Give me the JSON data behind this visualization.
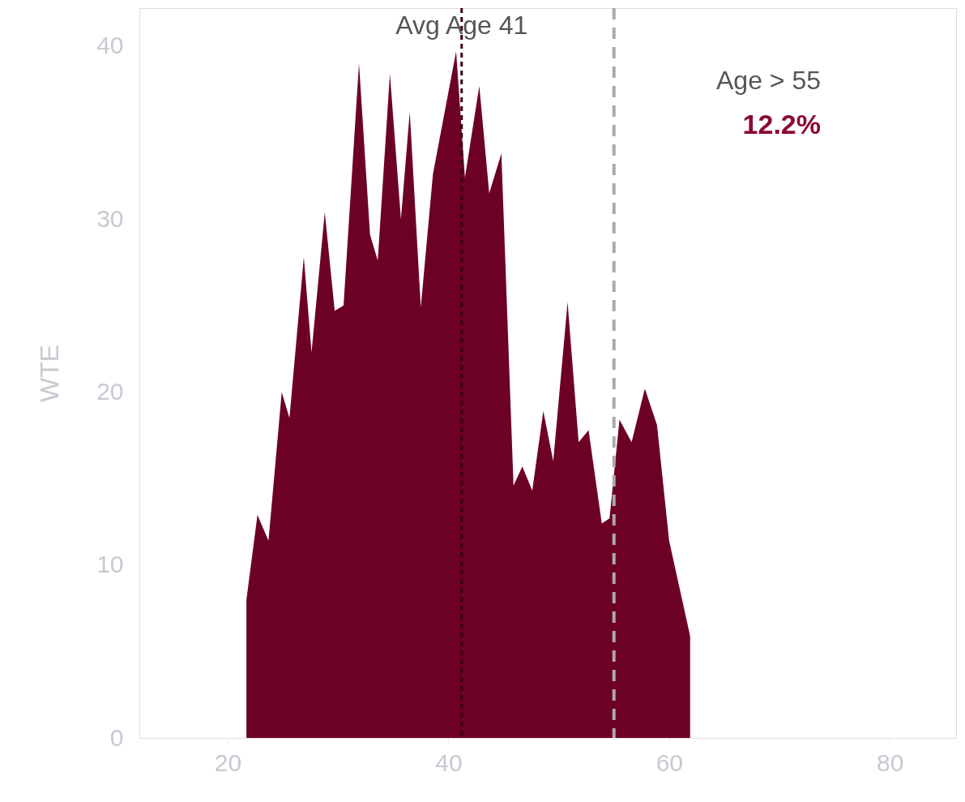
{
  "chart_data": {
    "type": "area",
    "ylabel": "WTE",
    "x": [
      21.7,
      22.7,
      23.7,
      24.9,
      25.6,
      26.9,
      27.6,
      28.8,
      29.7,
      30.5,
      31.9,
      32.9,
      33.6,
      34.7,
      35.7,
      36.5,
      37.5,
      38.6,
      40.7,
      41.5,
      42.8,
      43.7,
      44.8,
      45.9,
      46.7,
      47.6,
      48.6,
      49.5,
      50.8,
      51.8,
      52.7,
      53.9,
      54.6,
      55.5,
      56.6,
      57.8,
      58.9,
      60.0,
      61.9
    ],
    "series": [
      {
        "color": "#6d0026",
        "values": [
          8.0,
          12.9,
          11.4,
          20.0,
          18.5,
          27.8,
          22.3,
          30.4,
          24.7,
          25.0,
          39.0,
          29.1,
          27.6,
          38.4,
          30.0,
          36.2,
          24.9,
          32.6,
          39.7,
          32.4,
          37.7,
          31.5,
          33.8,
          14.6,
          15.7,
          14.3,
          18.9,
          16.0,
          25.2,
          17.1,
          17.8,
          12.4,
          12.7,
          18.4,
          17.1,
          20.2,
          18.1,
          11.4,
          5.9
        ]
      }
    ],
    "xlim": [
      12,
      86
    ],
    "xticks": [
      20,
      40,
      60,
      80
    ],
    "ylim": [
      0,
      42.2
    ],
    "yticks": [
      0,
      10,
      20,
      30,
      40
    ],
    "grid": false,
    "ref_lines": [
      {
        "axis": "x",
        "value": 41.2,
        "label": "Avg Age 41",
        "color": "#3a0012",
        "line_style": "dotted"
      },
      {
        "axis": "x",
        "value": 55,
        "color": "#aaaaaa",
        "line_style": "dashed"
      }
    ],
    "annotations": [
      "Age > 55",
      "12.2%"
    ]
  }
}
